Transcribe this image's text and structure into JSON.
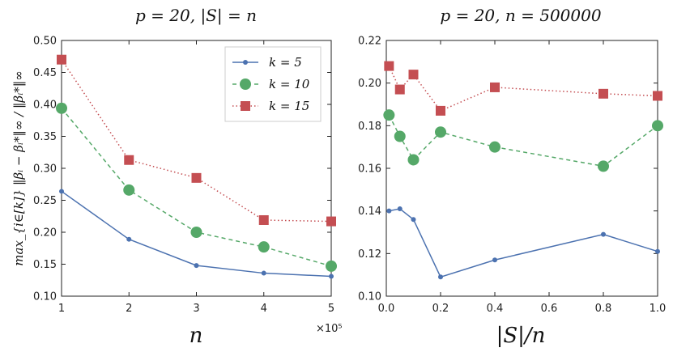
{
  "chart_data": [
    {
      "type": "line",
      "title": "p = 20, |S| = n",
      "xlabel": "n",
      "ylabel": "max_{i∈[k]} ‖βᵢ − βᵢ*‖∞ / ‖βᵢ*‖∞",
      "x_multiplier": "×10⁵",
      "xlim": [
        1,
        5
      ],
      "ylim": [
        0.1,
        0.5
      ],
      "xticks": [
        "1",
        "2",
        "3",
        "4",
        "5"
      ],
      "yticks": [
        "0.10",
        "0.15",
        "0.20",
        "0.25",
        "0.30",
        "0.35",
        "0.40",
        "0.45",
        "0.50"
      ],
      "x": [
        1,
        2,
        3,
        4,
        5
      ],
      "legend_position": "top-right",
      "series": [
        {
          "name": "k = 5",
          "values": [
            0.264,
            0.189,
            0.148,
            0.136,
            0.131
          ]
        },
        {
          "name": "k = 10",
          "values": [
            0.394,
            0.266,
            0.2,
            0.177,
            0.147
          ]
        },
        {
          "name": "k = 15",
          "values": [
            0.47,
            0.313,
            0.285,
            0.219,
            0.217
          ]
        }
      ]
    },
    {
      "type": "line",
      "title": "p = 20, n = 500000",
      "xlabel": "|S|/n",
      "xlim": [
        0.0,
        1.0
      ],
      "ylim": [
        0.1,
        0.22
      ],
      "xticks": [
        "0.0",
        "0.2",
        "0.4",
        "0.6",
        "0.8",
        "1.0"
      ],
      "yticks": [
        "0.10",
        "0.12",
        "0.14",
        "0.16",
        "0.18",
        "0.20",
        "0.22"
      ],
      "x": [
        0.01,
        0.05,
        0.1,
        0.2,
        0.4,
        0.8,
        1.0
      ],
      "series": [
        {
          "name": "k = 5",
          "values": [
            0.14,
            0.141,
            0.136,
            0.109,
            0.117,
            0.129,
            0.121
          ]
        },
        {
          "name": "k = 10",
          "values": [
            0.185,
            0.175,
            0.164,
            0.177,
            0.17,
            0.161,
            0.18
          ]
        },
        {
          "name": "k = 15",
          "values": [
            0.208,
            0.197,
            0.204,
            0.187,
            0.198,
            0.195,
            0.194
          ]
        }
      ]
    }
  ],
  "colors": {
    "k5": "#4c72b0",
    "k10": "#55a868",
    "k15": "#c44e52",
    "axis": "#222222",
    "legend_border": "#cccccc"
  }
}
